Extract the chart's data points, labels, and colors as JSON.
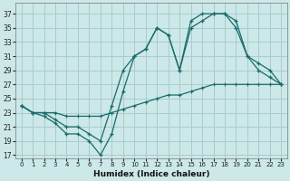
{
  "background_color": "#cce8e8",
  "grid_color": "#aacccc",
  "line_color": "#1a6b6b",
  "xlabel": "Humidex (Indice chaleur)",
  "xlim": [
    -0.5,
    23.5
  ],
  "ylim": [
    16.5,
    38.5
  ],
  "xticks": [
    0,
    1,
    2,
    3,
    4,
    5,
    6,
    7,
    8,
    9,
    10,
    11,
    12,
    13,
    14,
    15,
    16,
    17,
    18,
    19,
    20,
    21,
    22,
    23
  ],
  "yticks": [
    17,
    19,
    21,
    23,
    25,
    27,
    29,
    31,
    33,
    35,
    37
  ],
  "series1_x": [
    0,
    1,
    2,
    3,
    4,
    5,
    6,
    7,
    8,
    9,
    10,
    11,
    12,
    13,
    14,
    15,
    16,
    17,
    18,
    19,
    20,
    21,
    22,
    23
  ],
  "series1_y": [
    24,
    23,
    22.5,
    21.5,
    20,
    20,
    19,
    17,
    20,
    26,
    31,
    32,
    35,
    34,
    29,
    35,
    36,
    37,
    37,
    36,
    31,
    29,
    28,
    27
  ],
  "series2_x": [
    0,
    1,
    2,
    3,
    4,
    5,
    6,
    7,
    8,
    9,
    10,
    11,
    12,
    13,
    14,
    15,
    16,
    17,
    18,
    19,
    20,
    21,
    22,
    23
  ],
  "series2_y": [
    24,
    23,
    23,
    22,
    21,
    21,
    20,
    19,
    24,
    29,
    31,
    32,
    35,
    34,
    29,
    36,
    37,
    37,
    37,
    35,
    31,
    30,
    29,
    27
  ],
  "series3_x": [
    0,
    1,
    2,
    3,
    4,
    5,
    6,
    7,
    8,
    9,
    10,
    11,
    12,
    13,
    14,
    15,
    16,
    17,
    18,
    19,
    20,
    21,
    22,
    23
  ],
  "series3_y": [
    24,
    23,
    23,
    23,
    22.5,
    22.5,
    22.5,
    22.5,
    23,
    23.5,
    24,
    24.5,
    25,
    25.5,
    25.5,
    26,
    26.5,
    27,
    27,
    27,
    27,
    27,
    27,
    27
  ]
}
